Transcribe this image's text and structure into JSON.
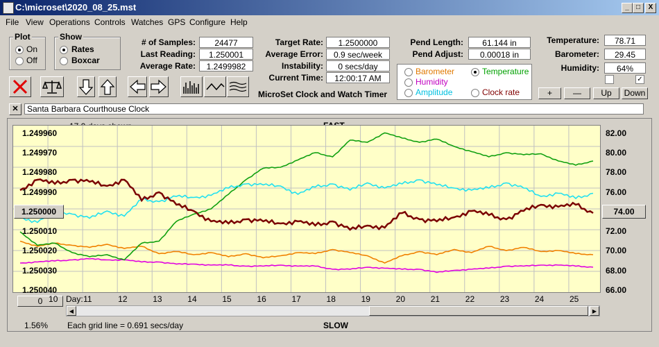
{
  "window": {
    "title": "C:\\microset\\2020_08_25.mst",
    "min": "_",
    "max": "□",
    "close": "X"
  },
  "menu": [
    "File",
    "View",
    "Operations",
    "Controls",
    "Watches",
    "GPS",
    "Configure",
    "Help"
  ],
  "plot_group": {
    "label": "Plot",
    "options": [
      {
        "label": "On",
        "selected": true
      },
      {
        "label": "Off",
        "selected": false
      }
    ]
  },
  "show_group": {
    "label": "Show",
    "options": [
      {
        "label": "Rates",
        "selected": true
      },
      {
        "label": "Boxcar",
        "selected": false
      }
    ]
  },
  "stats": {
    "samples_label": "# of Samples:",
    "samples": "24477",
    "last_label": "Last Reading:",
    "last": "1.250001",
    "avg_label": "Average Rate:",
    "avg": "1.2499982",
    "target_label": "Target Rate:",
    "target": "1.2500000",
    "avgerr_label": "Average Error:",
    "avgerr": "0.9 sec/week",
    "instab_label": "Instability:",
    "instab": "0 secs/day",
    "curtime_label": "Current Time:",
    "curtime": "12:00:17 AM",
    "pendlen_label": "Pend Length:",
    "pendlen": "61.144 in",
    "pendadj_label": "Pend Adjust:",
    "pendadj": "0.00018 in",
    "temp_label": "Temperature:",
    "temp": "78.71",
    "baro_label": "Barometer:",
    "baro": "29.45",
    "hum_label": "Humidity:",
    "hum": "64%"
  },
  "app_name": "MicroSet Clock and Watch Timer",
  "sensor_select": [
    {
      "label": "Barometer",
      "color": "#e07800",
      "selected": false
    },
    {
      "label": "Temperature",
      "color": "#00a000",
      "selected": true
    },
    {
      "label": "Humidity",
      "color": "#c000c0",
      "selected": false
    },
    {
      "label": "Clock rate",
      "color": "#800000",
      "selected": false
    },
    {
      "label": "Amplitude",
      "color": "#00c0e0",
      "selected": false
    }
  ],
  "adjust_buttons": {
    "plus": "+",
    "minus": "—",
    "up": "Up",
    "down": "Down"
  },
  "watch_name": "Santa Barbara Courthouse Clock",
  "graph": {
    "days_shown": "17.0 days shown",
    "fast": "FAST",
    "slow": "SLOW",
    "left_ticks": [
      "1.249960",
      "1.249970",
      "1.249980",
      "1.249990",
      "1.250000",
      "1.250010",
      "1.250020",
      "1.250030",
      "1.250040"
    ],
    "right_ticks": [
      "82.00",
      "80.00",
      "78.00",
      "76.00",
      "74.00",
      "72.00",
      "70.00",
      "68.00",
      "66.00"
    ],
    "day_label": "Day:",
    "days": [
      "10",
      "11",
      "12",
      "13",
      "14",
      "15",
      "16",
      "17",
      "18",
      "19",
      "20",
      "21",
      "22",
      "23",
      "24",
      "25"
    ],
    "center_left": "1.250000",
    "center_right": "74.00",
    "zero_btn": "0",
    "percent": "1.56%",
    "grid_note": "Each grid line = 0.691 secs/day",
    "colors": {
      "rate": "#7a0000",
      "amplitude": "#20e0f0",
      "temperature": "#10a010",
      "barometer": "#f08000",
      "humidity": "#e000e0"
    }
  },
  "chart_data": {
    "type": "line",
    "x": [
      9.2,
      9.7,
      10.2,
      10.7,
      11.2,
      11.7,
      12.2,
      12.7,
      13.2,
      13.7,
      14.2,
      14.7,
      15.2,
      15.7,
      16.2,
      16.7,
      17.2,
      17.7,
      18.2,
      18.7,
      19.2,
      19.7,
      20.2,
      20.7,
      21.2,
      21.7,
      22.2,
      22.7,
      23.2,
      23.7,
      24.2,
      24.7,
      25.2,
      25.7
    ],
    "xlabel": "Day:",
    "ylim_left": [
      1.24996,
      1.25004
    ],
    "ylim_right": [
      66,
      82
    ],
    "series": [
      {
        "name": "Clock rate",
        "axis": "left",
        "values": [
          1.249991,
          1.249986,
          1.249988,
          1.249986,
          1.249987,
          1.249989,
          1.249986,
          1.249996,
          1.249992,
          1.249998,
          1.250001,
          1.250006,
          1.250007,
          1.250005,
          1.250006,
          1.250007,
          1.250006,
          1.250008,
          1.250006,
          1.25001,
          1.250008,
          1.250009,
          1.250002,
          1.250005,
          1.250006,
          1.250004,
          1.250001,
          1.250003,
          1.250005,
          1.250001,
          1.249998,
          1.249999,
          1.249998,
          1.250002
        ]
      },
      {
        "name": "Amplitude",
        "axis": "right",
        "values": [
          73.2,
          72.7,
          73.8,
          73.5,
          73.1,
          73.8,
          73.3,
          74.9,
          74.7,
          75.2,
          75.1,
          75.3,
          76.0,
          76.4,
          76.3,
          76.2,
          75.4,
          76.1,
          76.4,
          75.8,
          76.5,
          76.0,
          76.4,
          76.8,
          76.3,
          76.0,
          75.8,
          76.0,
          76.5,
          76.0,
          75.2,
          75.5,
          75.0,
          75.5
        ]
      },
      {
        "name": "Temperature",
        "axis": "right",
        "values": [
          71.8,
          70.5,
          70.7,
          69.8,
          69.4,
          69.6,
          69.1,
          70.7,
          70.9,
          72.8,
          73.5,
          74.0,
          75.4,
          76.8,
          77.9,
          78.0,
          78.7,
          79.4,
          79.0,
          80.6,
          80.4,
          81.3,
          80.8,
          80.4,
          80.7,
          80.0,
          79.5,
          79.0,
          79.4,
          79.2,
          79.3,
          78.6,
          78.2,
          78.6
        ]
      },
      {
        "name": "Barometer",
        "axis": "right",
        "values": [
          70.9,
          70.4,
          70.7,
          70.5,
          70.3,
          70.6,
          70.2,
          70.4,
          69.7,
          69.9,
          69.6,
          69.8,
          69.4,
          69.7,
          69.3,
          69.5,
          69.8,
          69.7,
          70.1,
          69.8,
          69.5,
          68.8,
          69.5,
          69.9,
          69.6,
          70.1,
          69.8,
          70.4,
          70.0,
          70.3,
          69.9,
          70.0,
          69.7,
          69.6
        ]
      },
      {
        "name": "Humidity",
        "axis": "right",
        "values": [
          68.8,
          68.9,
          69.0,
          69.1,
          69.2,
          69.1,
          69.1,
          68.9,
          68.9,
          68.7,
          68.7,
          68.6,
          68.6,
          68.5,
          68.5,
          68.6,
          68.5,
          68.5,
          68.2,
          68.2,
          68.4,
          68.3,
          68.2,
          68.2,
          67.9,
          68.1,
          68.2,
          68.3,
          68.5,
          68.5,
          68.6,
          68.6,
          68.5,
          68.4
        ]
      }
    ]
  }
}
